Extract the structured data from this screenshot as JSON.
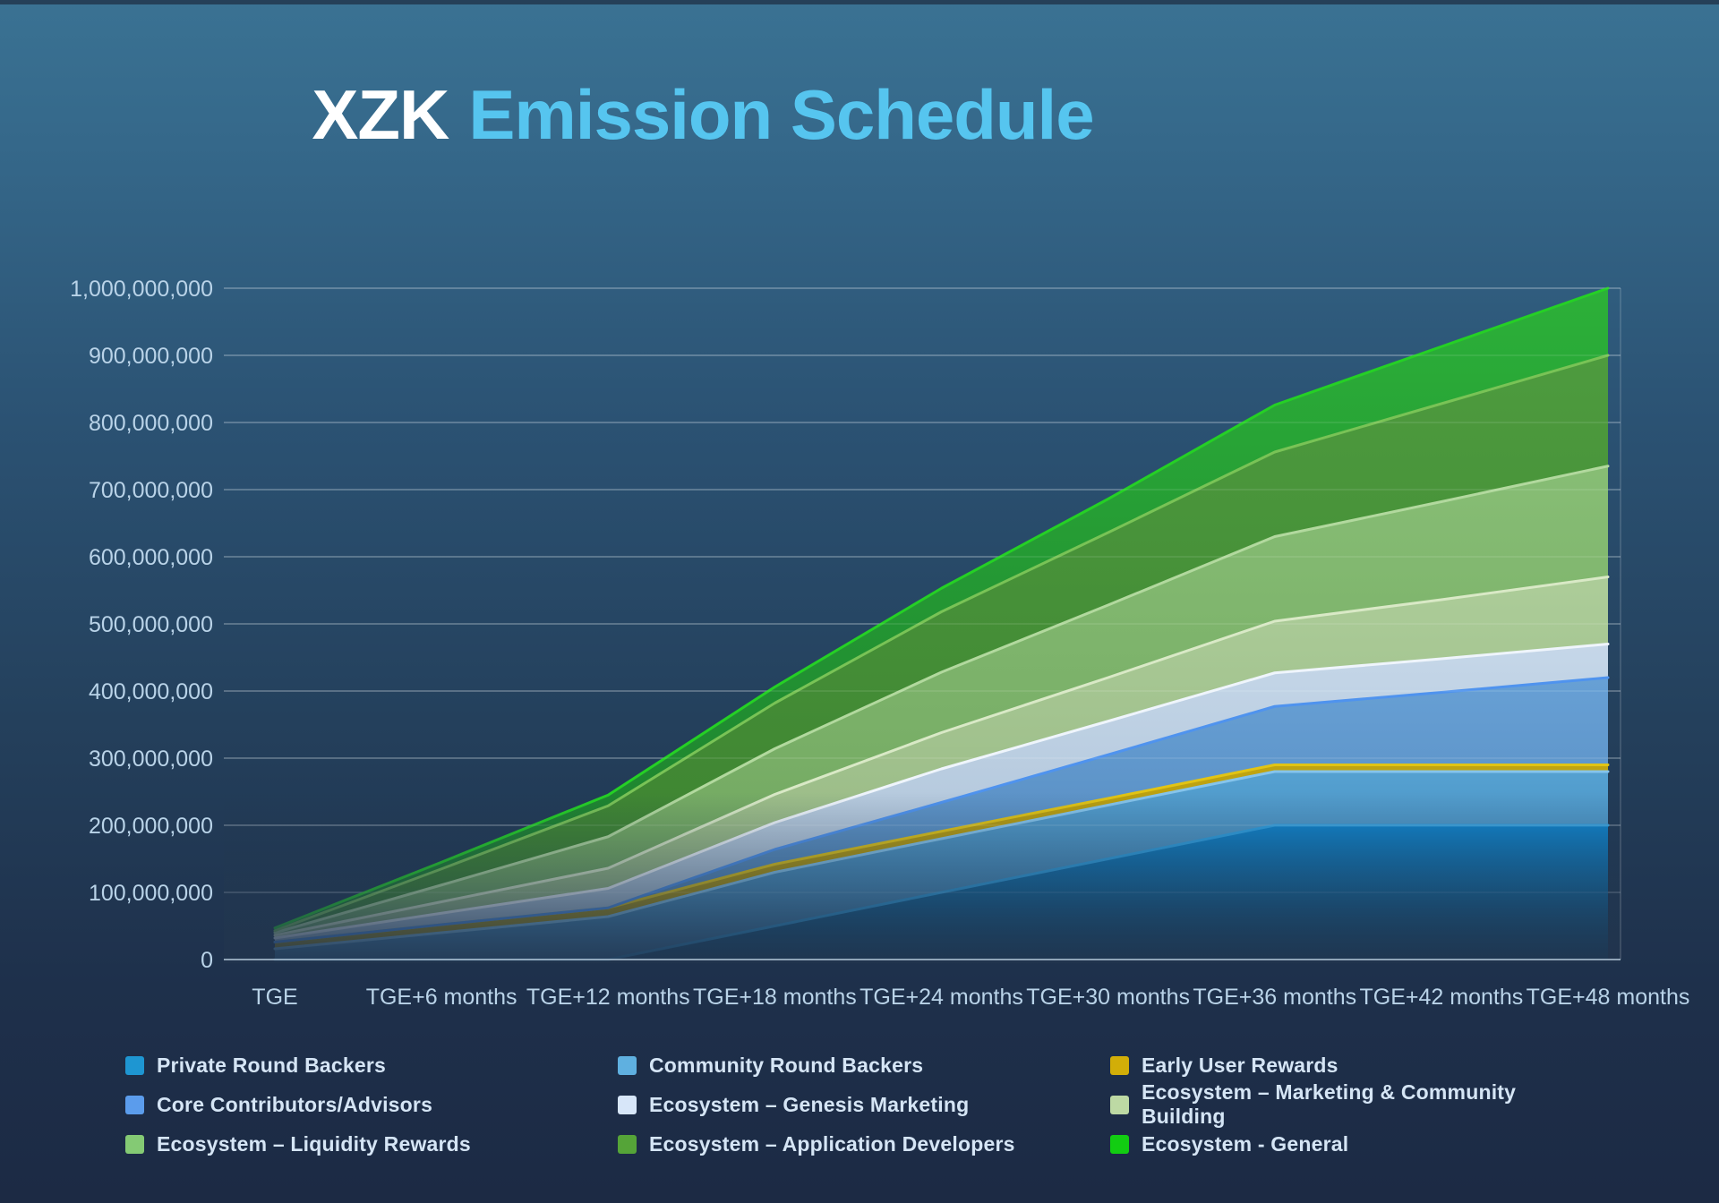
{
  "title": {
    "prefix": "XZK",
    "main": "Emission Schedule"
  },
  "background": {
    "top_color": "#3a7293",
    "bottom_color": "#1c2a44"
  },
  "chart_data": {
    "type": "area",
    "stacked": true,
    "title": "XZK Emission Schedule",
    "xlabel": "",
    "ylabel": "",
    "values_unit": "millions of XZK tokens",
    "ylim_millions": [
      0,
      1000
    ],
    "grid": true,
    "legend_position": "bottom",
    "categories": [
      "TGE",
      "TGE+6 months",
      "TGE+12 months",
      "TGE+18 months",
      "TGE+24 months",
      "TGE+30 months",
      "TGE+36 months",
      "TGE+42 months",
      "TGE+48 months"
    ],
    "y_tick_labels": [
      "0",
      "100,000,000",
      "200,000,000",
      "300,000,000",
      "400,000,000",
      "500,000,000",
      "600,000,000",
      "700,000,000",
      "800,000,000",
      "900,000,000",
      "1,000,000,000"
    ],
    "y_tick_values_millions": [
      0,
      100,
      200,
      300,
      400,
      500,
      600,
      700,
      800,
      900,
      1000
    ],
    "total_supply_millions": 1000,
    "series": [
      {
        "name": "Private Round Backers",
        "total_millions": 200,
        "fill": "#0f86d0",
        "fill_bottom": "#11486f",
        "stroke": "#2f9fe0",
        "values": [
          0,
          0,
          0,
          50,
          100,
          150,
          200,
          200,
          200
        ]
      },
      {
        "name": "Community Round Backers",
        "total_millions": 80,
        "fill": "#57a5d6",
        "fill_bottom": "#3f82b4",
        "stroke": "#85c4ec",
        "values": [
          16,
          40,
          64,
          80,
          80,
          80,
          80,
          80,
          80
        ]
      },
      {
        "name": "Early User Rewards",
        "total_millions": 10,
        "fill": "#c7a90e",
        "fill_bottom": "#a98f0c",
        "stroke": "#e2c414",
        "values": [
          10,
          12,
          13,
          12,
          11,
          10,
          10,
          10,
          10
        ]
      },
      {
        "name": "Core Contributors/Advisors",
        "total_millions": 130,
        "fill": "#6aa4da",
        "fill_bottom": "#5388bd",
        "stroke": "#4f93ee",
        "values": [
          0,
          0,
          0,
          22,
          43,
          65,
          87,
          108,
          130
        ]
      },
      {
        "name": "Ecosystem – Genesis Marketing",
        "total_millions": 50,
        "fill": "#ccddee",
        "fill_bottom": "#aec4da",
        "stroke": "#eff5fc",
        "values": [
          6,
          17,
          29,
          40,
          50,
          50,
          50,
          50,
          50
        ]
      },
      {
        "name": "Ecosystem – Marketing & Community Building",
        "total_millions": 100,
        "fill": "#b2d29b",
        "fill_bottom": "#98ba82",
        "stroke": "#d9e9c6",
        "values": [
          4,
          17,
          30,
          42,
          54,
          65,
          77,
          88,
          100
        ]
      },
      {
        "name": "Ecosystem – Liquidity Rewards",
        "total_millions": 165,
        "fill": "#8bc275",
        "fill_bottom": "#72a95e",
        "stroke": "#b2d99e",
        "values": [
          4,
          25,
          47,
          68,
          90,
          108,
          126,
          146,
          165
        ]
      },
      {
        "name": "Ecosystem – Application Developers",
        "total_millions": 165,
        "fill": "#4f9e3c",
        "fill_bottom": "#3d842e",
        "stroke": "#79c356",
        "values": [
          3,
          24,
          46,
          68,
          90,
          108,
          126,
          146,
          165
        ]
      },
      {
        "name": "Ecosystem - General",
        "total_millions": 100,
        "fill": "#2cb436",
        "fill_bottom": "#1b7e2c",
        "stroke": "#25d025",
        "values": [
          4,
          10,
          16,
          24,
          35,
          50,
          70,
          85,
          100
        ]
      }
    ],
    "legend_swatch_colors": [
      "#1e96d2",
      "#5fb0e0",
      "#d2ae08",
      "#5b9cec",
      "#d7e6f9",
      "#bdd9a4",
      "#84ca74",
      "#55a438",
      "#12cd12"
    ]
  }
}
